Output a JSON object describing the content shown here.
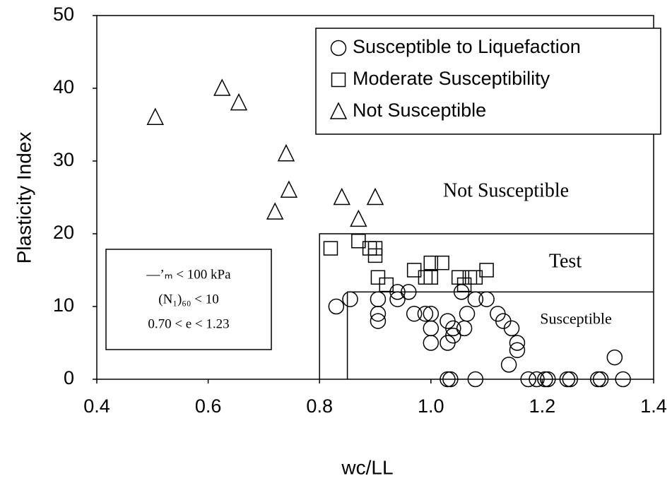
{
  "chart_data": {
    "type": "scatter",
    "xlabel": "wc/LL",
    "ylabel": "Plasticity Index",
    "xlim": [
      0.4,
      1.4
    ],
    "ylim": [
      0,
      50
    ],
    "xticks": [
      {
        "value": 0.4,
        "label": "0.4"
      },
      {
        "value": 0.6,
        "label": "0.6"
      },
      {
        "value": 0.8,
        "label": "0.8"
      },
      {
        "value": 1.0,
        "label": "1.0"
      },
      {
        "value": 1.2,
        "label": "1.2"
      },
      {
        "value": 1.4,
        "label": "1.4"
      }
    ],
    "yticks": [
      0,
      10,
      20,
      30,
      40,
      50
    ],
    "legend": "upper right",
    "series": [
      {
        "name": "Susceptible to Liquefaction",
        "marker": "circle",
        "color": "#000000",
        "x": [
          0.83,
          0.855,
          0.905,
          0.905,
          0.905,
          0.94,
          0.94,
          0.96,
          0.97,
          0.99,
          1.0,
          1.0,
          1.0,
          1.03,
          1.03,
          1.04,
          1.04,
          1.055,
          1.06,
          1.065,
          1.08,
          1.1,
          1.12,
          1.13,
          1.145,
          1.14,
          1.155,
          1.155,
          1.33,
          1.03,
          1.035,
          1.08,
          1.175,
          1.19,
          1.205,
          1.21,
          1.245,
          1.25,
          1.3,
          1.305,
          1.345
        ],
        "values": [
          10,
          11,
          11,
          9,
          8,
          12,
          11,
          12,
          9,
          9,
          9,
          7,
          5,
          8,
          5,
          6,
          7,
          12,
          7,
          9,
          11,
          11,
          9,
          8,
          7,
          2,
          5,
          4,
          3,
          0,
          0,
          0,
          0,
          0,
          0,
          0,
          0,
          0,
          0,
          0,
          0
        ]
      },
      {
        "name": "Moderate Susceptibility",
        "marker": "square",
        "color": "#000000",
        "x": [
          0.82,
          0.87,
          0.89,
          0.9,
          0.9,
          0.905,
          0.92,
          0.97,
          0.99,
          1.0,
          1.0,
          1.02,
          1.05,
          1.06,
          1.07,
          1.08,
          1.1
        ],
        "values": [
          18,
          19,
          18,
          18,
          17,
          14,
          13,
          15,
          14,
          16,
          14,
          16,
          14,
          13,
          14,
          14,
          15
        ]
      },
      {
        "name": "Not Susceptible",
        "marker": "triangle",
        "color": "#000000",
        "x": [
          0.505,
          0.625,
          0.655,
          0.74,
          0.745,
          0.72,
          0.84,
          0.9,
          0.87
        ],
        "values": [
          36,
          40,
          38,
          31,
          26,
          23,
          25,
          25,
          22
        ]
      }
    ],
    "zones": [
      {
        "label": "Test",
        "x0": 0.8,
        "y1": 20
      },
      {
        "label": "Susceptible",
        "x0": 0.85,
        "y1": 12
      }
    ],
    "zone_title": "Not Susceptible",
    "criteria": [
      "—’ₘ < 100 kPa",
      "(N₁)₆₀ < 10",
      "0.70 < e < 1.23"
    ]
  }
}
